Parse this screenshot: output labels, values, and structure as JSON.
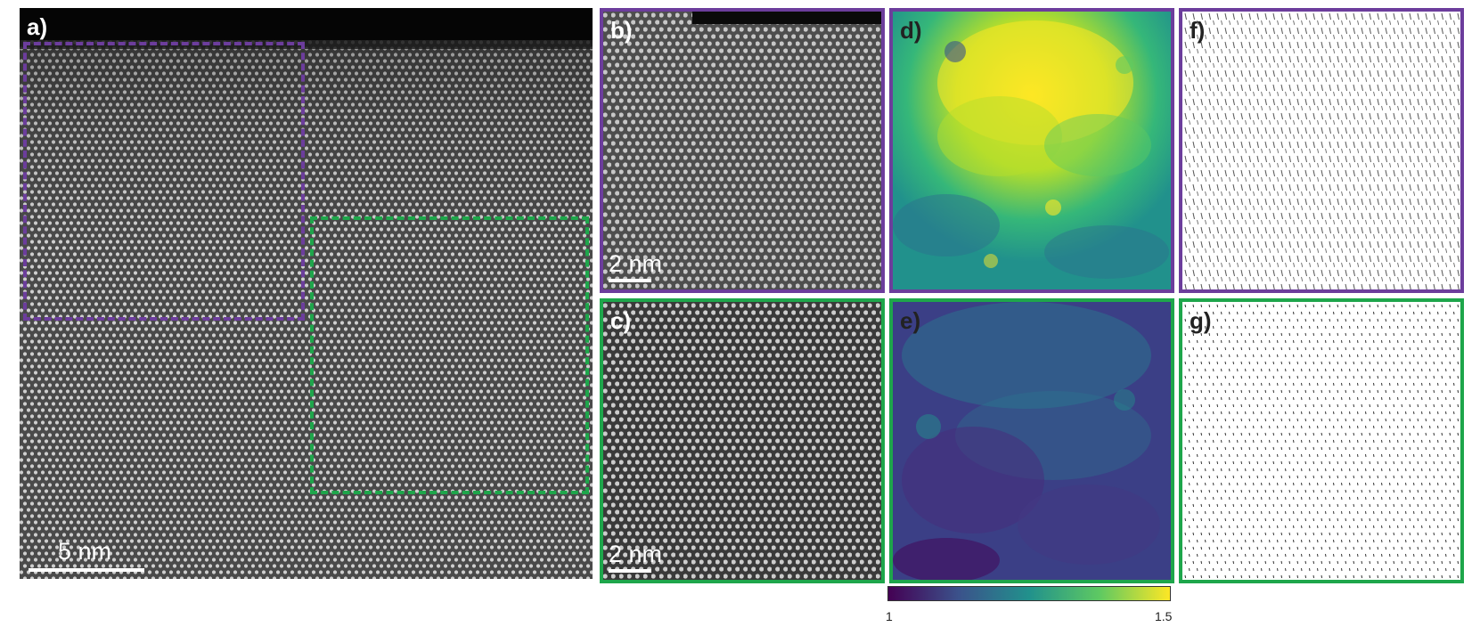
{
  "panels": {
    "a": {
      "label": "a)",
      "scalebar": "5 nm"
    },
    "b": {
      "label": "b)",
      "scalebar": "2 nm"
    },
    "c": {
      "label": "c)",
      "scalebar": "2 nm"
    },
    "d": {
      "label": "d)"
    },
    "e": {
      "label": "e)"
    },
    "f": {
      "label": "f)"
    },
    "g": {
      "label": "g)"
    }
  },
  "colorbar": {
    "min_label": "1",
    "max_label": "1.5",
    "colormap": "viridis"
  },
  "colors": {
    "purple": "#6c3d9c",
    "green": "#1ea64b"
  }
}
